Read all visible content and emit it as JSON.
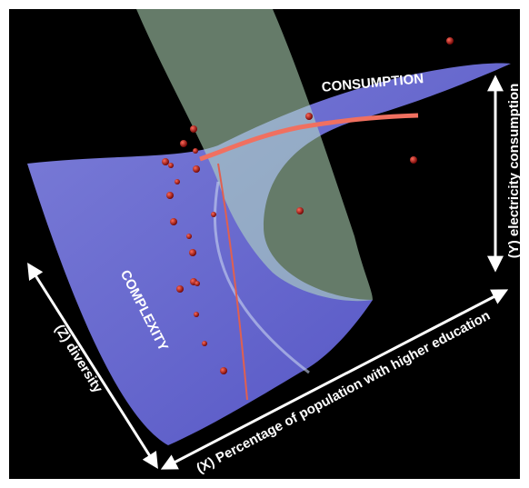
{
  "labels": {
    "consumption": "CONSUMPTION",
    "complexity": "COMPLEXITY",
    "z_axis": "(Z) diversity",
    "x_axis": "(X) Percentage of population with higher education",
    "y_axis": "(Y) electricity consumption"
  }
}
